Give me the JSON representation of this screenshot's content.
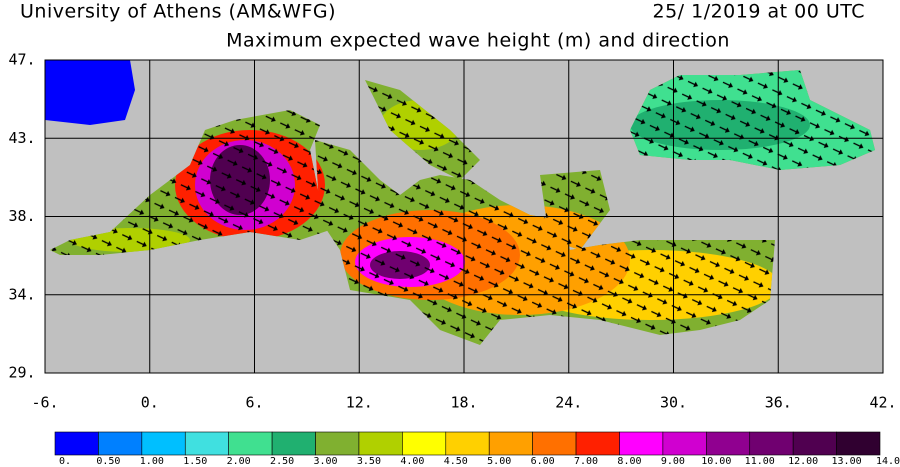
{
  "header": {
    "institution": "University of Athens (AM&WFG)",
    "datetime": "25/ 1/2019 at 00 UTC",
    "title": "Maximum expected wave height (m) and direction"
  },
  "axes": {
    "lat_labels": [
      "47.",
      "43.",
      "38.",
      "34.",
      "29."
    ],
    "lon_labels": [
      "-6.",
      "0.",
      "6.",
      "12.",
      "18.",
      "24.",
      "30.",
      "36.",
      "42."
    ]
  },
  "colorbar": {
    "colors": [
      "#0000ff",
      "#0080ff",
      "#00bfff",
      "#40e0e0",
      "#40e090",
      "#20b070",
      "#80b030",
      "#b0d000",
      "#ffff00",
      "#ffd000",
      "#ffa000",
      "#ff7000",
      "#ff2000",
      "#ff00ff",
      "#d000d0",
      "#900090",
      "#700070",
      "#500050",
      "#300030"
    ],
    "labels": [
      "0.",
      "0.50",
      "1.00",
      "1.50",
      "2.00",
      "2.50",
      "3.00",
      "3.50",
      "4.00",
      "4.50",
      "5.00",
      "6.00",
      "7.00",
      "8.00",
      "9.00",
      "10.00",
      "11.00",
      "12.00",
      "13.00",
      "14.0"
    ]
  }
}
